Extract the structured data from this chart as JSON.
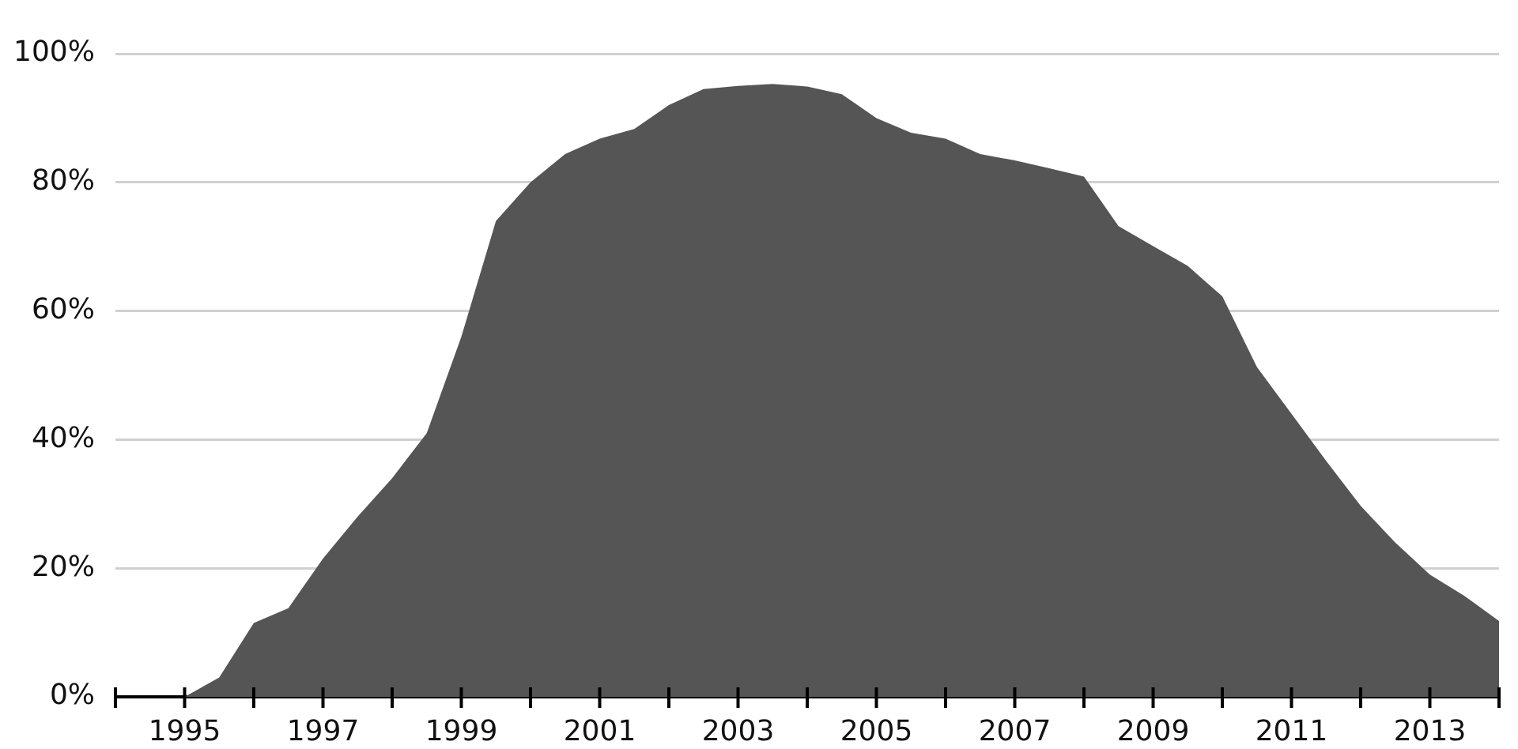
{
  "chart_data": {
    "type": "area",
    "x": [
      1995,
      1995.5,
      1996,
      1996.5,
      1997,
      1997.5,
      1998,
      1998.5,
      1999,
      1999.5,
      2000,
      2000.5,
      2001,
      2001.5,
      2002,
      2002.5,
      2003,
      2003.5,
      2004,
      2004.5,
      2005,
      2005.5,
      2006,
      2006.5,
      2007,
      2007.5,
      2008,
      2008.5,
      2009,
      2009.5,
      2010,
      2010.5,
      2011,
      2011.5,
      2012,
      2012.5,
      2013,
      2013.5,
      2014
    ],
    "series": [
      {
        "color": "#555555",
        "values": [
          0,
          3,
          11.5,
          13.8,
          21.5,
          28,
          34,
          41,
          56,
          74,
          80,
          84.4,
          86.8,
          88.3,
          92,
          94.5,
          95,
          95.3,
          94.9,
          93.7,
          90,
          87.7,
          86.8,
          84.4,
          83.4,
          82.2,
          80.9,
          73.2,
          70.1,
          67,
          62.3,
          51.3,
          44,
          36.7,
          29.7,
          24,
          19,
          15.7,
          11.8
        ]
      }
    ],
    "xlim": [
      1994,
      2014
    ],
    "xticks": [
      {
        "value": 1994,
        "label": null
      },
      1995,
      {
        "value": 1996,
        "label": null
      },
      1997,
      {
        "value": 1998,
        "label": null
      },
      1999,
      {
        "value": 2000,
        "label": null
      },
      2001,
      {
        "value": 2002,
        "label": null
      },
      2003,
      {
        "value": 2004,
        "label": null
      },
      2005,
      {
        "value": 2006,
        "label": null
      },
      2007,
      {
        "value": 2008,
        "label": null
      },
      2009,
      {
        "value": 2010,
        "label": null
      },
      2011,
      {
        "value": 2012,
        "label": null
      },
      2013,
      {
        "value": 2014,
        "label": null
      }
    ],
    "ylim": [
      0,
      100
    ],
    "yticks": [
      {
        "value": 0,
        "label": "0%"
      },
      {
        "value": 20,
        "label": "20%"
      },
      {
        "value": 40,
        "label": "40%"
      },
      {
        "value": 60,
        "label": "60%"
      },
      {
        "value": 80,
        "label": "80%"
      },
      {
        "value": 100,
        "label": "100%"
      }
    ],
    "grid": "y"
  }
}
